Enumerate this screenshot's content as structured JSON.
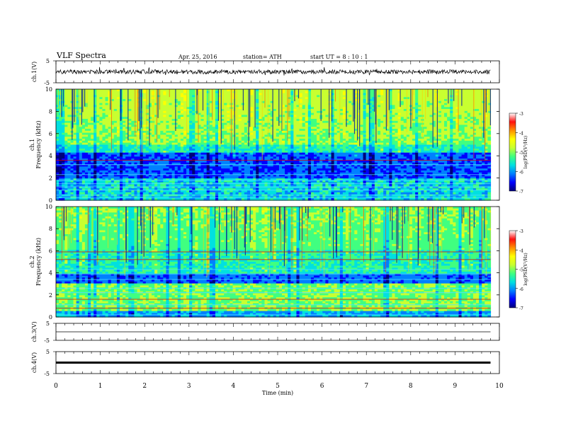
{
  "header": {
    "title": "VLF  Spectra",
    "date": "Apr. 25, 2016",
    "station": "station= ATH",
    "start": "start  UT  =  8 : 10 : 1"
  },
  "chart_data": [
    {
      "type": "line",
      "panel": "ch1-waveform",
      "ylabel": "ch.1(V)",
      "ylim": [
        -5,
        5
      ],
      "yticks": [
        "5",
        "-5"
      ],
      "x_range_min": [
        0,
        9.8
      ],
      "baseline_value": 0
    },
    {
      "type": "heatmap",
      "panel": "ch1-spectrogram",
      "ylabel_lines": [
        "ch.1",
        "Frequency  (kHz)"
      ],
      "ylim": [
        0,
        10
      ],
      "yticks": [
        "0",
        "2",
        "4",
        "6",
        "8",
        "10"
      ],
      "x_range_min": [
        0,
        9.8
      ],
      "colorbar": {
        "label": "log(PSD(V²/Hz)",
        "range": [
          -7,
          -3
        ],
        "ticks": [
          "-3",
          "-4",
          "-5",
          "-6",
          "-7"
        ]
      }
    },
    {
      "type": "heatmap",
      "panel": "ch2-spectrogram",
      "ylabel_lines": [
        "ch.2",
        "Frequency  (kHz)"
      ],
      "ylim": [
        0,
        10
      ],
      "yticks": [
        "0",
        "2",
        "4",
        "6",
        "8",
        "10"
      ],
      "x_range_min": [
        0,
        9.8
      ],
      "colorbar": {
        "label": "log(PSD(V²/Hz)",
        "range": [
          -7,
          -3
        ],
        "ticks": [
          "-3",
          "-4",
          "-5",
          "-6",
          "-7"
        ]
      }
    },
    {
      "type": "line",
      "panel": "ch3-waveform",
      "ylabel": "ch.3(V)",
      "ylim": [
        -5,
        5
      ],
      "yticks": [
        "5",
        "-5"
      ],
      "baseline_value": 0
    },
    {
      "type": "line",
      "panel": "ch4-waveform",
      "ylabel": "ch.4(V)",
      "ylim": [
        -5,
        5
      ],
      "yticks": [
        "5",
        "-5"
      ],
      "baseline_value": 0
    }
  ],
  "xaxis": {
    "label": "Time  (min)",
    "range": [
      0,
      10
    ],
    "ticks": [
      "0",
      "1",
      "2",
      "3",
      "4",
      "5",
      "6",
      "7",
      "8",
      "9",
      "10"
    ]
  },
  "colors": {
    "colormap": [
      "#00007a",
      "#0000ff",
      "#0080ff",
      "#00e0e0",
      "#40ff80",
      "#c8ff30",
      "#ffff00",
      "#ff9000",
      "#ff1010",
      "#ffffff"
    ]
  }
}
